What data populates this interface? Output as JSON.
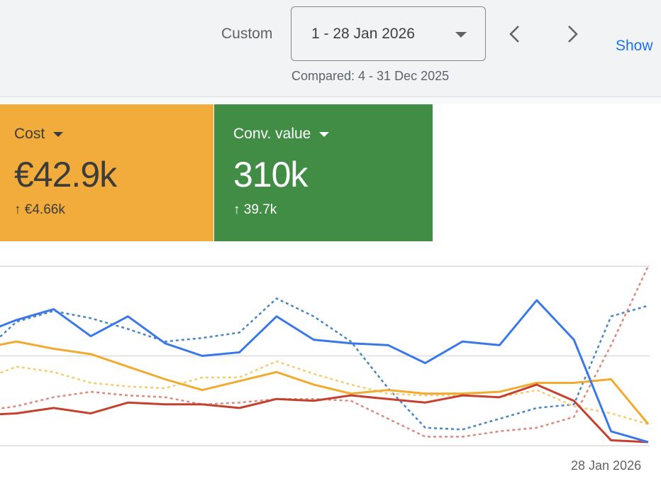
{
  "date_range": {
    "preset_label": "Custom",
    "value": "1 - 28 Jan 2026",
    "compared": "Compared: 4 - 31 Dec 2025",
    "show_link": "Show"
  },
  "cards": [
    {
      "title": "Cost",
      "value": "€42.9k",
      "delta": "€4.66k",
      "delta_arrow": "↑",
      "color": "#f1ac3b"
    },
    {
      "title": "Conv. value",
      "value": "310k",
      "delta": "39.7k",
      "delta_arrow": "↑",
      "color": "#418d45"
    }
  ],
  "chart_data": {
    "type": "line",
    "x_label_visible": "28 Jan 2026",
    "x": [
      10,
      11,
      12,
      13,
      14,
      15,
      16,
      17,
      18,
      19,
      20,
      21,
      22,
      23,
      24,
      25,
      26,
      27,
      28
    ],
    "ylim": [
      0,
      100
    ],
    "grid": true,
    "series": [
      {
        "id": "blue-current",
        "color": "#3b78e7",
        "dashed": false,
        "values": [
          62,
          70,
          76,
          61,
          72,
          57,
          50,
          52,
          72,
          59,
          57,
          56,
          46,
          58,
          56,
          81,
          59,
          8,
          2
        ]
      },
      {
        "id": "blue-previous",
        "color": "#4a86c5",
        "dashed": true,
        "values": [
          50,
          69,
          75,
          71,
          65,
          58,
          60,
          63,
          82,
          72,
          58,
          32,
          10,
          9,
          15,
          21,
          23,
          72,
          78
        ]
      },
      {
        "id": "yellow-current",
        "color": "#f0ab30",
        "dashed": false,
        "values": [
          54,
          58,
          54,
          51,
          44,
          37,
          31,
          36,
          41,
          34,
          29,
          31,
          29,
          29,
          30,
          35,
          35,
          37,
          12
        ]
      },
      {
        "id": "yellow-previous",
        "color": "#f3cd72",
        "dashed": true,
        "values": [
          36,
          44,
          41,
          35,
          33,
          32,
          38,
          38,
          47,
          40,
          34,
          29,
          28,
          28,
          27,
          31,
          22,
          18,
          12
        ]
      },
      {
        "id": "red-current",
        "color": "#c5412f",
        "dashed": false,
        "values": [
          17,
          18,
          21,
          18,
          24,
          23,
          23,
          21,
          26,
          25,
          28,
          26,
          24,
          28,
          27,
          34,
          25,
          3,
          2
        ]
      },
      {
        "id": "red-previous",
        "color": "#dc8a80",
        "dashed": true,
        "values": [
          19,
          22,
          27,
          30,
          28,
          27,
          23,
          24,
          26,
          26,
          25,
          15,
          5,
          5,
          8,
          10,
          16,
          56,
          100
        ]
      }
    ]
  }
}
